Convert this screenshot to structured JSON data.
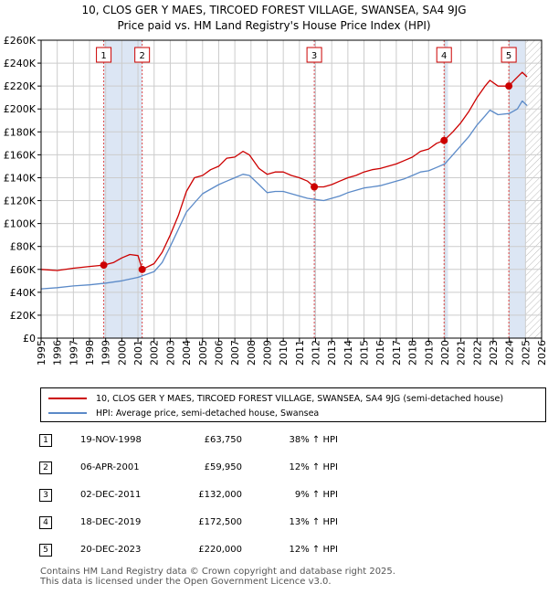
{
  "title_line1": "10, CLOS GER Y MAES, TIRCOED FOREST VILLAGE, SWANSEA, SA4 9JG",
  "title_line2": "Price paid vs. HM Land Registry's House Price Index (HPI)",
  "colors": {
    "property": "#cc0000",
    "hpi": "#5b8ac8",
    "shade": "#dce6f4",
    "marker_line": "#dd4444",
    "grid": "#cccccc"
  },
  "chart_data": {
    "type": "line",
    "xlim": [
      1995,
      2026
    ],
    "ylim": [
      0,
      260000
    ],
    "x_ticks": [
      1995,
      1996,
      1997,
      1998,
      1999,
      2000,
      2001,
      2002,
      2003,
      2004,
      2005,
      2006,
      2007,
      2008,
      2009,
      2010,
      2011,
      2012,
      2013,
      2014,
      2015,
      2016,
      2017,
      2018,
      2019,
      2020,
      2021,
      2022,
      2023,
      2024,
      2025,
      2026
    ],
    "y_ticks": [
      0,
      20000,
      40000,
      60000,
      80000,
      100000,
      120000,
      140000,
      160000,
      180000,
      200000,
      220000,
      240000,
      260000
    ],
    "y_tick_labels": [
      "£0",
      "£20K",
      "£40K",
      "£60K",
      "£80K",
      "£100K",
      "£120K",
      "£140K",
      "£160K",
      "£180K",
      "£200K",
      "£220K",
      "£240K",
      "£260K"
    ],
    "grid": true,
    "legend_position": "below",
    "series": [
      {
        "name": "10, CLOS GER Y MAES, TIRCOED FOREST VILLAGE, SWANSEA, SA4 9JG (semi-detached house)",
        "x": [
          1995.0,
          1996.0,
          1997.0,
          1998.0,
          1998.88,
          1999.5,
          2000.0,
          2000.5,
          2001.0,
          2001.26,
          2002.0,
          2002.5,
          2003.0,
          2003.5,
          2004.0,
          2004.5,
          2005.0,
          2005.5,
          2006.0,
          2006.5,
          2007.0,
          2007.5,
          2007.9,
          2008.5,
          2009.0,
          2009.5,
          2010.0,
          2010.5,
          2011.0,
          2011.5,
          2011.92,
          2012.5,
          2013.0,
          2013.5,
          2014.0,
          2014.5,
          2015.0,
          2015.5,
          2016.0,
          2016.5,
          2017.0,
          2017.5,
          2018.0,
          2018.5,
          2019.0,
          2019.5,
          2019.96,
          2020.5,
          2021.0,
          2021.5,
          2022.0,
          2022.5,
          2022.8,
          2023.3,
          2023.97,
          2024.3,
          2024.8,
          2025.1
        ],
        "y": [
          60000,
          59000,
          61000,
          62500,
          63750,
          66000,
          70000,
          73000,
          72000,
          59950,
          65000,
          75000,
          90000,
          107000,
          128000,
          140000,
          142000,
          147000,
          150000,
          157000,
          158000,
          163000,
          160000,
          148000,
          143000,
          145000,
          145000,
          142000,
          140000,
          137000,
          132000,
          132000,
          134000,
          137000,
          140000,
          142000,
          145000,
          147000,
          148000,
          150000,
          152000,
          155000,
          158000,
          163000,
          165000,
          170000,
          172500,
          180000,
          188000,
          198000,
          210000,
          220000,
          225000,
          220000,
          220000,
          225000,
          232000,
          228000
        ]
      },
      {
        "name": "HPI: Average price, semi-detached house, Swansea",
        "x": [
          1995.0,
          1996.0,
          1997.0,
          1998.0,
          1999.0,
          2000.0,
          2001.0,
          2002.0,
          2002.5,
          2003.0,
          2003.5,
          2004.0,
          2004.5,
          2005.0,
          2005.5,
          2006.0,
          2006.5,
          2007.0,
          2007.5,
          2007.9,
          2008.5,
          2009.0,
          2009.5,
          2010.0,
          2010.5,
          2011.0,
          2011.5,
          2012.0,
          2012.5,
          2013.0,
          2013.5,
          2014.0,
          2014.5,
          2015.0,
          2015.5,
          2016.0,
          2016.5,
          2017.0,
          2017.5,
          2018.0,
          2018.5,
          2019.0,
          2019.5,
          2020.0,
          2020.5,
          2021.0,
          2021.5,
          2022.0,
          2022.5,
          2022.8,
          2023.3,
          2024.0,
          2024.5,
          2024.8,
          2025.1
        ],
        "y": [
          43000,
          44000,
          45500,
          46500,
          48000,
          50000,
          53000,
          58000,
          66000,
          80000,
          95000,
          110000,
          118000,
          126000,
          130000,
          134000,
          137000,
          140000,
          143000,
          142000,
          134000,
          127000,
          128000,
          128000,
          126000,
          124000,
          122000,
          121000,
          120000,
          122000,
          124000,
          127000,
          129000,
          131000,
          132000,
          133000,
          135000,
          137000,
          139000,
          142000,
          145000,
          146000,
          149000,
          152000,
          160000,
          168000,
          176000,
          186000,
          194000,
          199000,
          195000,
          196000,
          200000,
          207000,
          203000
        ]
      }
    ],
    "sale_markers": [
      {
        "label": "1",
        "x": 1998.88,
        "y": 63750
      },
      {
        "label": "2",
        "x": 2001.26,
        "y": 59950
      },
      {
        "label": "3",
        "x": 2011.92,
        "y": 132000
      },
      {
        "label": "4",
        "x": 2019.96,
        "y": 172500
      },
      {
        "label": "5",
        "x": 2023.97,
        "y": 220000
      }
    ],
    "shaded_ranges": [
      [
        1998.88,
        2001.26
      ],
      [
        2011.92,
        2012.0
      ],
      [
        2019.96,
        2020.2
      ],
      [
        2023.97,
        2025.0
      ]
    ],
    "hatched_range": [
      2025.0,
      2026
    ]
  },
  "legend": {
    "property_label": "10, CLOS GER Y MAES, TIRCOED FOREST VILLAGE, SWANSEA, SA4 9JG (semi-detached house)",
    "hpi_label": "HPI: Average price, semi-detached house, Swansea"
  },
  "sales": [
    {
      "num": "1",
      "date": "19-NOV-1998",
      "price": "£63,750",
      "hpi": "38% ↑ HPI"
    },
    {
      "num": "2",
      "date": "06-APR-2001",
      "price": "£59,950",
      "hpi": "12% ↑ HPI"
    },
    {
      "num": "3",
      "date": "02-DEC-2011",
      "price": "£132,000",
      "hpi": "9% ↑ HPI"
    },
    {
      "num": "4",
      "date": "18-DEC-2019",
      "price": "£172,500",
      "hpi": "13% ↑ HPI"
    },
    {
      "num": "5",
      "date": "20-DEC-2023",
      "price": "£220,000",
      "hpi": "12% ↑ HPI"
    }
  ],
  "footer_line1": "Contains HM Land Registry data © Crown copyright and database right 2025.",
  "footer_line2": "This data is licensed under the Open Government Licence v3.0."
}
